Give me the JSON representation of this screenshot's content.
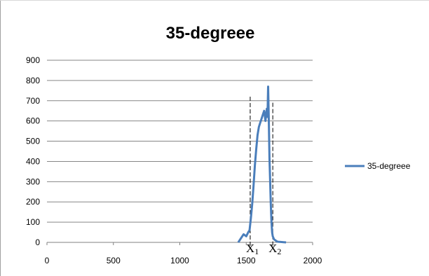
{
  "chart_data": {
    "type": "line",
    "title": "35-degreee",
    "xlabel": "",
    "ylabel": "",
    "xlim": [
      0,
      2000
    ],
    "ylim": [
      0,
      900
    ],
    "x_ticks": [
      0,
      500,
      1000,
      1500,
      2000
    ],
    "y_ticks": [
      0,
      100,
      200,
      300,
      400,
      500,
      600,
      700,
      800,
      900
    ],
    "grid": "horizontal",
    "legend_position": "right",
    "series": [
      {
        "name": "35-degreee",
        "color": "#4a7ebb",
        "x": [
          1440,
          1460,
          1480,
          1500,
          1515,
          1525,
          1535,
          1545,
          1555,
          1565,
          1575,
          1585,
          1595,
          1605,
          1615,
          1625,
          1635,
          1645,
          1655,
          1660,
          1665,
          1670,
          1675,
          1680,
          1685,
          1690,
          1695,
          1700,
          1710,
          1720,
          1730,
          1740,
          1760,
          1780,
          1800
        ],
        "y": [
          0,
          20,
          40,
          30,
          50,
          60,
          120,
          190,
          280,
          380,
          460,
          530,
          570,
          590,
          610,
          630,
          650,
          600,
          660,
          620,
          770,
          600,
          420,
          300,
          190,
          100,
          50,
          30,
          15,
          10,
          5,
          3,
          2,
          1,
          0
        ]
      }
    ],
    "annotations": [
      {
        "text": "X",
        "subscript": "1",
        "x": 1530,
        "style": "dashed-vertical-line"
      },
      {
        "text": "X",
        "subscript": "2",
        "x": 1700,
        "style": "dashed-vertical-line"
      }
    ]
  }
}
